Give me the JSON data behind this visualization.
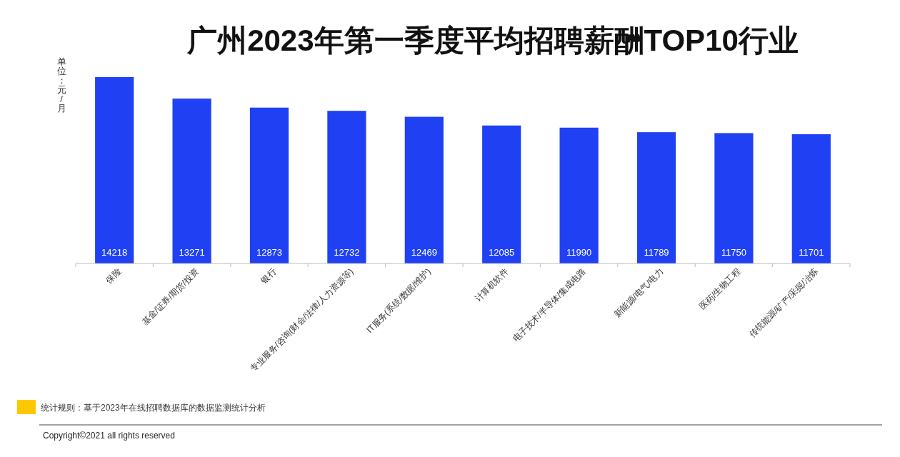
{
  "chart_data": {
    "type": "bar",
    "title": "广州2023年第一季度平均招聘薪酬TOP10行业",
    "ylabel": "单位：元/月",
    "categories": [
      "保险",
      "基金/证券/期货/投资",
      "银行",
      "专业服务/咨询(财会/法律/人力资源等)",
      "IT服务(系统/数据/维护)",
      "计算机软件",
      "电子技术/半导体/集成电路",
      "新能源/电气/电力",
      "医药/生物工程",
      "传统能源/矿产/采掘/冶炼"
    ],
    "values": [
      14218,
      13271,
      12873,
      12732,
      12469,
      12085,
      11990,
      11789,
      11750,
      11701
    ],
    "color": "#1f41f3",
    "ylim": [
      6000,
      14218
    ],
    "data_labels": true,
    "tick_labels": "x",
    "annotations": [
      "统计规则：基于2023年在线招聘数据库的数据监测统计分析",
      "Copyright©2021 all rights reserved"
    ]
  }
}
